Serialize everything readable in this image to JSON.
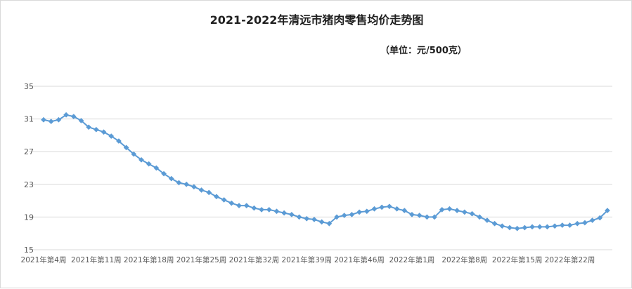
{
  "chart_data": {
    "type": "line",
    "title": "2021-2022年清远市猪肉零售均价走势图",
    "subtitle": "（单位：元/500克）",
    "xlabel": "",
    "ylabel": "",
    "ylim": [
      15,
      35
    ],
    "yticks": [
      "15",
      "19",
      "23",
      "27",
      "31",
      "35"
    ],
    "grid": true,
    "legend": "none",
    "line_color": "#5b9bd5",
    "x_tick_labels": [
      "2021年第4周",
      "2021年第11周",
      "2021年第18周",
      "2021年第25周",
      "2021年第32周",
      "2021年第39周",
      "2021年第46周",
      "2022年第1周",
      "2022年第8周",
      "2022年第15周",
      "2022年第22周"
    ],
    "series": [
      {
        "values": [
          30.9,
          30.7,
          30.9,
          31.5,
          31.3,
          30.8,
          30.0,
          29.7,
          29.4,
          28.9,
          28.3,
          27.5,
          26.7,
          26.0,
          25.5,
          25.0,
          24.3,
          23.7,
          23.2,
          23.0,
          22.7,
          22.3,
          22.0,
          21.5,
          21.1,
          20.7,
          20.4,
          20.4,
          20.1,
          19.9,
          19.9,
          19.7,
          19.5,
          19.3,
          19.0,
          18.8,
          18.7,
          18.4,
          18.2,
          19.0,
          19.2,
          19.3,
          19.6,
          19.7,
          20.0,
          20.2,
          20.3,
          20.0,
          19.8,
          19.3,
          19.2,
          19.0,
          19.0,
          19.9,
          20.0,
          19.8,
          19.6,
          19.4,
          19.0,
          18.6,
          18.2,
          17.9,
          17.7,
          17.6,
          17.7,
          17.8,
          17.8,
          17.8,
          17.9,
          18.0,
          18.0,
          18.2,
          18.3,
          18.6,
          18.9,
          19.8
        ]
      }
    ]
  }
}
